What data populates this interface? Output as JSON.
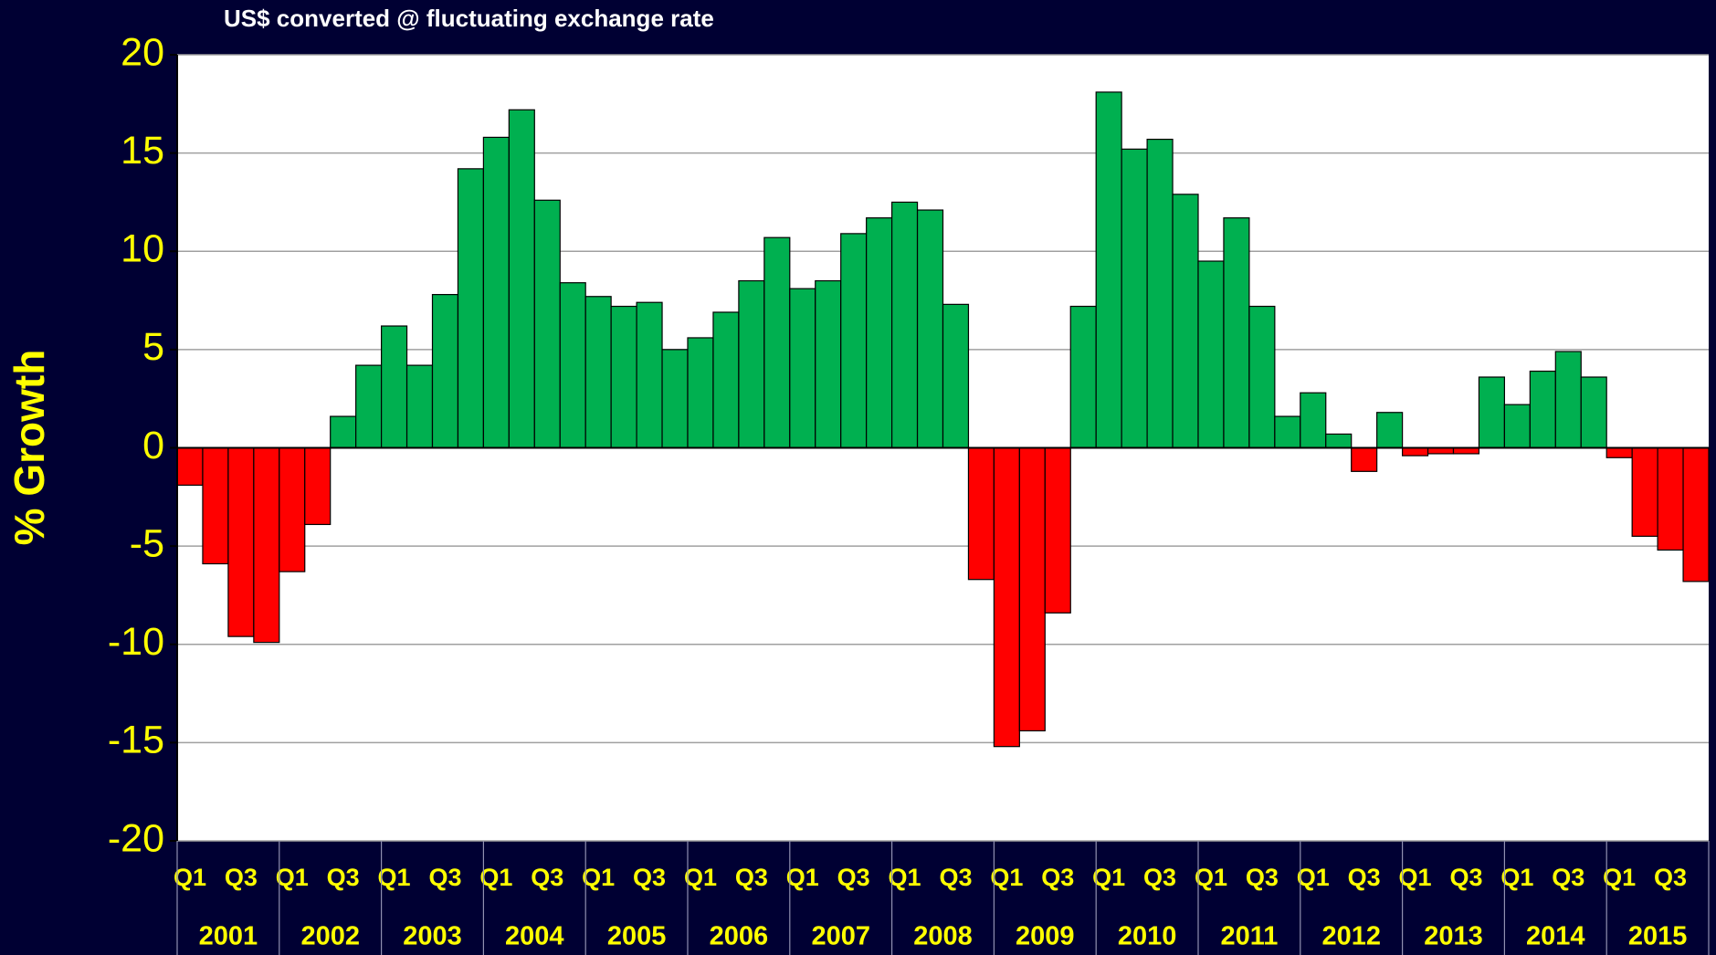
{
  "chart_data": {
    "type": "bar",
    "title": "US$ converted @ fluctuating exchange rate",
    "y_label": "% Growth",
    "categories": [
      "Q1",
      null,
      "Q3",
      null,
      "Q1",
      null,
      "Q3",
      null,
      "Q1",
      null,
      "Q3",
      null,
      "Q1",
      null,
      "Q3",
      null,
      "Q1",
      null,
      "Q3",
      null,
      "Q1",
      null,
      "Q3",
      null,
      "Q1",
      null,
      "Q3",
      null,
      "Q1",
      null,
      "Q3",
      null,
      "Q1",
      null,
      "Q3",
      null,
      "Q1",
      null,
      "Q3",
      null,
      "Q1",
      null,
      "Q3",
      null,
      "Q1",
      null,
      "Q3",
      null,
      "Q1",
      null,
      "Q3",
      null,
      "Q1",
      null,
      "Q3",
      null,
      "Q1",
      null,
      "Q3",
      null
    ],
    "years": [
      "2001",
      "2002",
      "2003",
      "2004",
      "2005",
      "2006",
      "2007",
      "2008",
      "2009",
      "2010",
      "2011",
      "2012",
      "2013",
      "2014",
      "2015"
    ],
    "values": [
      -1.9,
      -5.9,
      -9.6,
      -9.9,
      -6.3,
      -3.9,
      1.6,
      4.2,
      6.2,
      4.2,
      7.8,
      14.2,
      15.8,
      17.2,
      12.6,
      8.4,
      7.7,
      7.2,
      7.4,
      5.0,
      5.6,
      6.9,
      8.5,
      10.7,
      8.1,
      8.5,
      10.9,
      11.7,
      12.5,
      12.1,
      7.3,
      -6.7,
      -15.2,
      -14.4,
      -8.4,
      7.2,
      18.1,
      15.2,
      15.7,
      12.9,
      9.5,
      11.7,
      7.2,
      1.6,
      2.8,
      0.7,
      -1.2,
      1.8,
      -0.4,
      -0.3,
      -0.3,
      3.6,
      2.2,
      3.9,
      4.9,
      3.6,
      -0.5,
      -4.5,
      -5.2,
      -6.8
    ],
    "positive_color": "#00b050",
    "negative_color": "#ff0000",
    "ylim": [
      -20,
      20
    ],
    "yticks": [
      -20,
      -15,
      -10,
      -5,
      0,
      5,
      10,
      15,
      20
    ],
    "grid": true
  }
}
